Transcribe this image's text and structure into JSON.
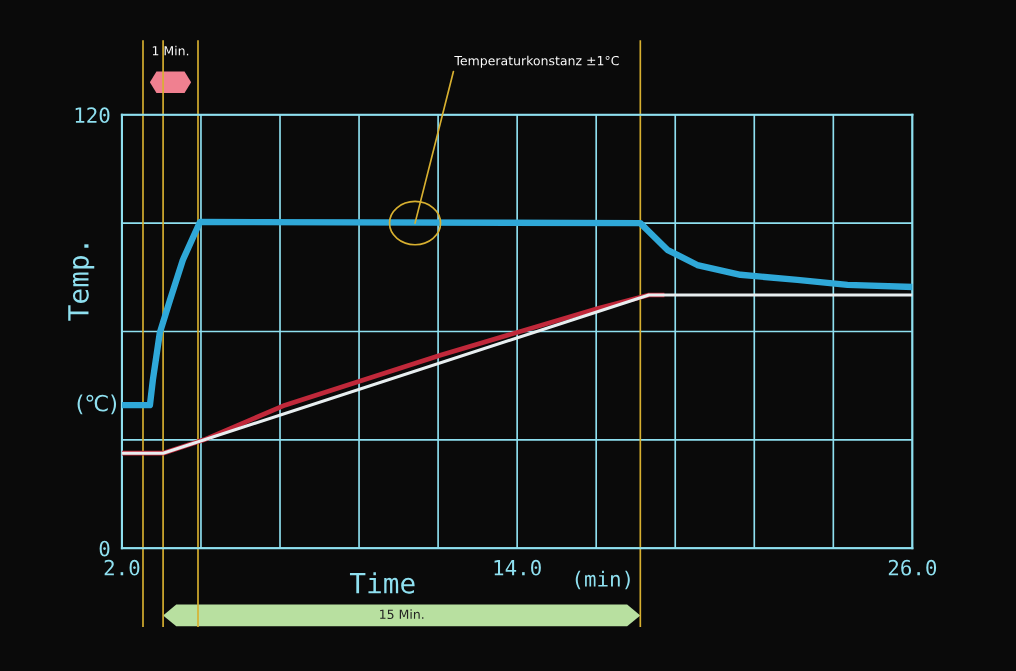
{
  "chart_data": {
    "type": "line",
    "xlabel": "Time",
    "ylabel": "Temp.",
    "xlim": [
      2,
      26
    ],
    "ylim": [
      0,
      120
    ],
    "xticks": [
      {
        "value": 2,
        "label": "2.0"
      },
      {
        "value": 4.4,
        "label": null
      },
      {
        "value": 6.8,
        "label": null
      },
      {
        "value": 9.2,
        "label": null
      },
      {
        "value": 11.6,
        "label": null
      },
      {
        "value": 14,
        "label": "14.0"
      },
      {
        "value": 16.4,
        "label": null
      },
      {
        "value": 18.8,
        "label": null
      },
      {
        "value": 21.2,
        "label": null
      },
      {
        "value": 23.6,
        "label": null
      },
      {
        "value": 26,
        "label": "26.0"
      }
    ],
    "yticks": [
      0,
      {
        "value": 30,
        "label": null
      },
      {
        "value": 60,
        "label": null
      },
      {
        "value": 90,
        "label": null
      },
      120
    ],
    "grid": true,
    "legend": false,
    "marker": "none",
    "line_style": "solid",
    "series": [
      {
        "color": "#2fa8d8",
        "x": [
          2,
          2.85,
          2.94,
          3.15,
          3.46,
          3.85,
          4.37,
          17.74,
          17.95,
          18.56,
          19.47,
          20.78,
          22.51,
          24.03,
          26
        ],
        "values": [
          39.6,
          39.6,
          46.6,
          59.6,
          68.7,
          79.8,
          90.3,
          90,
          88.1,
          82.6,
          78.4,
          75.7,
          74.3,
          72.9,
          72.3
        ]
      },
      {
        "color": "#c0283a",
        "x": [
          2,
          3.25,
          4.49,
          6.95,
          11.69,
          16.5,
          18.0,
          18.4
        ],
        "values": [
          26.3,
          26.3,
          30,
          39.6,
          53.5,
          66.5,
          70.1,
          70.1
        ]
      },
      {
        "color": "#e8eef0",
        "x": [
          2,
          3.25,
          18.0,
          26
        ],
        "values": [
          26.3,
          26.3,
          70.1,
          70.1
        ]
      }
    ],
    "ref_lines": [
      {
        "axis": "x",
        "value": 2.64,
        "color": "#d8b030"
      },
      {
        "axis": "x",
        "value": 4.31,
        "color": "#d8b030"
      },
      {
        "axis": "x",
        "value": 3.25,
        "color": "#d8b030"
      },
      {
        "axis": "x",
        "value": 17.74,
        "color": "#d8b030"
      }
    ],
    "annotations": [
      {
        "text": "Temperaturkonstanz ±1°C",
        "x": 10.9,
        "y": 90
      },
      "1 Min.",
      "15 Min.",
      "(min)",
      "(℃)"
    ]
  }
}
